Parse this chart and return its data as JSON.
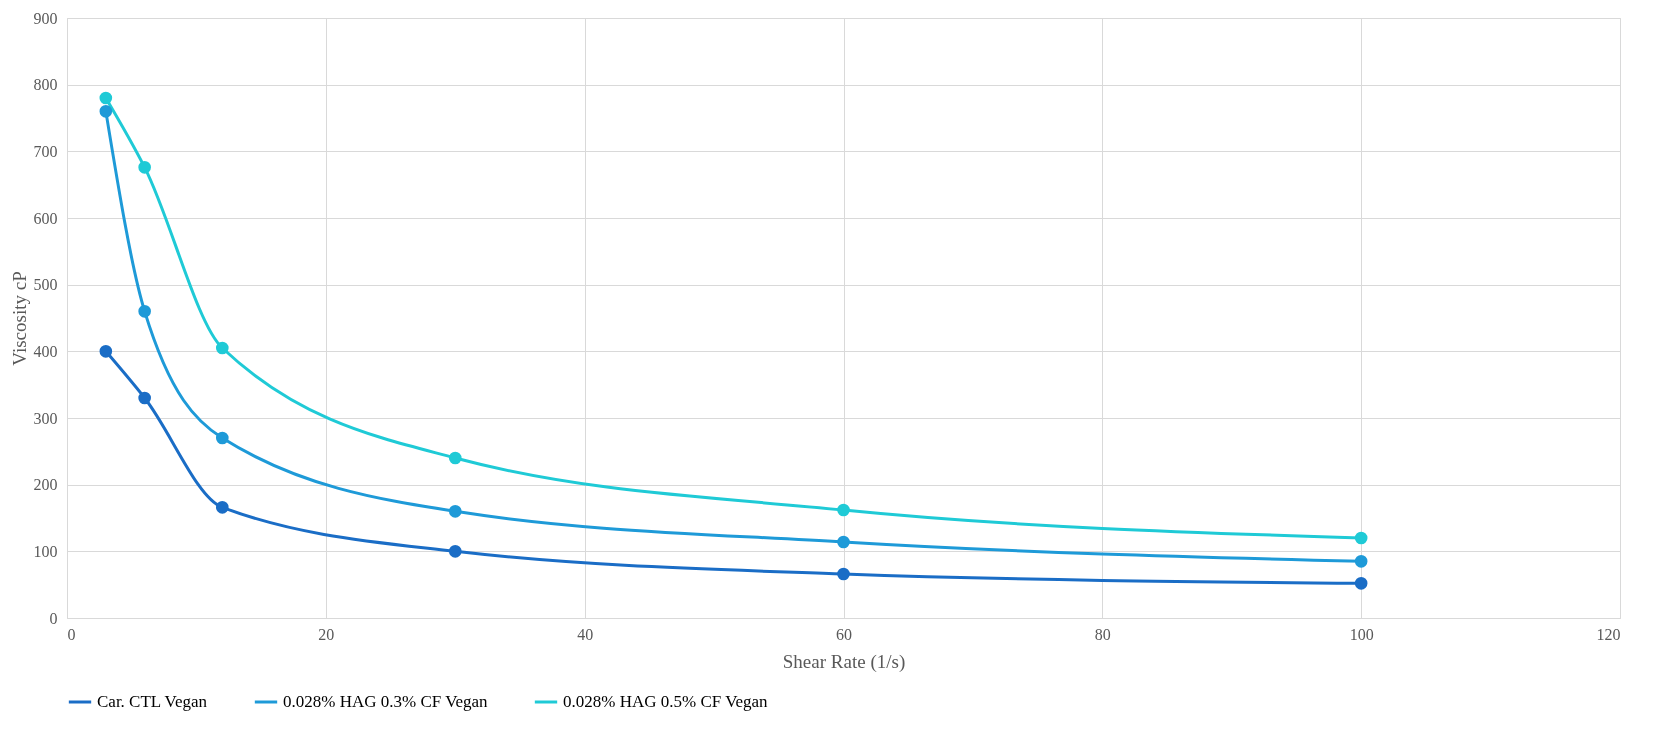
{
  "chart_data": {
    "type": "line",
    "xlabel": "Shear Rate (1/s)",
    "ylabel": "Viscosity cP",
    "x": [
      3,
      6,
      12,
      30,
      60,
      100
    ],
    "series": [
      {
        "name": "Car. CTL Vegan",
        "color": "#1a6dc6",
        "values": [
          400,
          330,
          166,
          100,
          66,
          52
        ]
      },
      {
        "name": "0.028% HAG 0.3% CF Vegan",
        "color": "#1e9ad8",
        "values": [
          760,
          460,
          270,
          160,
          114,
          85
        ]
      },
      {
        "name": "0.028% HAG 0.5% CF Vegan",
        "color": "#1fcad6",
        "values": [
          780,
          676,
          405,
          240,
          162,
          120
        ]
      }
    ],
    "xlim": [
      0,
      120
    ],
    "xticks": [
      0,
      20,
      40,
      60,
      80,
      100,
      120
    ],
    "ylim": [
      0,
      900
    ],
    "yticks": [
      0,
      100,
      200,
      300,
      400,
      500,
      600,
      700,
      800,
      900
    ],
    "grid": true,
    "legend": "bottom",
    "marker": "circle",
    "line_style": "solid"
  }
}
